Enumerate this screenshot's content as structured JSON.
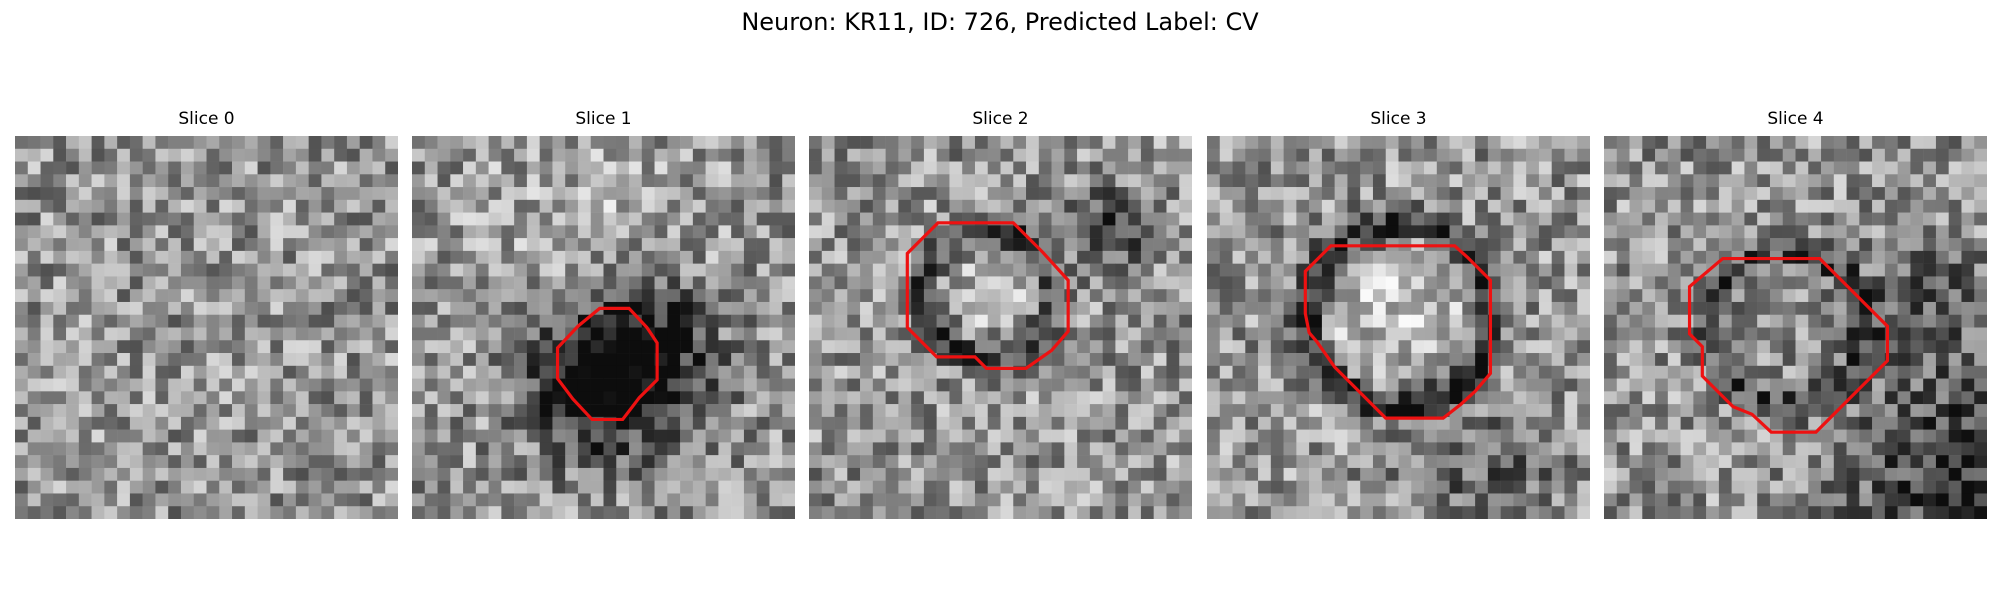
{
  "figure": {
    "title": "Neuron: KR11, ID: 726, Predicted Label: CV"
  },
  "colors": {
    "contour": "#ee1111",
    "colormap": "gray"
  },
  "slices": [
    {
      "title": "Slice 0",
      "has_contour": false
    },
    {
      "title": "Slice 1",
      "has_contour": true
    },
    {
      "title": "Slice 2",
      "has_contour": true
    },
    {
      "title": "Slice 3",
      "has_contour": true
    },
    {
      "title": "Slice 4",
      "has_contour": true
    }
  ]
}
